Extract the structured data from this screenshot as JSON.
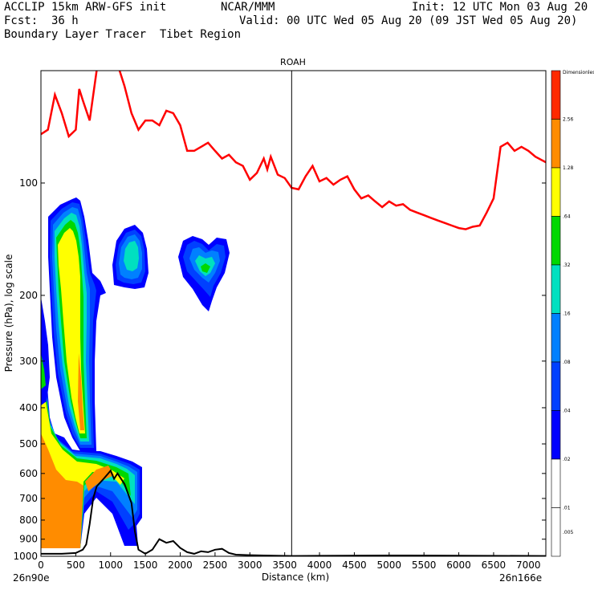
{
  "header": {
    "model": "ACCLIP 15km ARW-GFS init",
    "org": "NCAR/MMM",
    "init": "Init: 12 UTC Mon 03 Aug 20",
    "fcst_label": "Fcst:",
    "fcst_value": "36 h",
    "valid": "Valid: 00 UTC Wed 05 Aug 20 (09 JST Wed 05 Aug 20)",
    "product": "Boundary Layer Tracer  Tibet Region"
  },
  "chart_data": {
    "type": "contour",
    "title": "ROAH",
    "xlabel": "Distance (km)",
    "ylabel": "Pressure (hPa), log scale",
    "xlim": [
      0,
      7250
    ],
    "ylim": [
      1000,
      50
    ],
    "y_scale": "log",
    "x_ticks": [
      0,
      500,
      1000,
      1500,
      2000,
      2500,
      3000,
      3500,
      4000,
      4500,
      5000,
      5500,
      6000,
      6500,
      7000
    ],
    "y_ticks": [
      100,
      200,
      300,
      400,
      500,
      600,
      700,
      800,
      900,
      1000
    ],
    "endpoint_left": "26n90e",
    "endpoint_right": "26n166e",
    "vertical_marker_x": 3600,
    "colorbar": {
      "title": "Dimensionless",
      "levels": [
        "2.56",
        "1.28",
        ".64",
        ".32",
        ".16",
        ".08",
        ".04",
        ".02",
        ".01",
        ".005"
      ],
      "colors": [
        "#ff2a00",
        "#ff8c00",
        "#ffff00",
        "#00d800",
        "#00e0c0",
        "#0080ff",
        "#0040ff",
        "#0000ff",
        "#ffffff",
        "#ffffff"
      ]
    },
    "tropopause_line": {
      "color": "#ff0000",
      "x": [
        0,
        100,
        200,
        300,
        400,
        500,
        550,
        600,
        700,
        800,
        850,
        950,
        1100,
        1200,
        1300,
        1400,
        1500,
        1600,
        1700,
        1800,
        1900,
        2000,
        2100,
        2200,
        2300,
        2400,
        2500,
        2600,
        2700,
        2800,
        2900,
        3000,
        3100,
        3200,
        3250,
        3300,
        3400,
        3500,
        3600,
        3700,
        3800,
        3900,
        4000,
        4100,
        4200,
        4300,
        4400,
        4500,
        4600,
        4700,
        4800,
        4900,
        5000,
        5100,
        5200,
        5300,
        5400,
        5500,
        5600,
        5700,
        5800,
        5900,
        6000,
        6100,
        6200,
        6300,
        6400,
        6500,
        6600,
        6700,
        6800,
        6900,
        7000,
        7100,
        7250
      ],
      "y": [
        74,
        72,
        58,
        65,
        75,
        72,
        56,
        60,
        68,
        50,
        48,
        48,
        48,
        55,
        65,
        72,
        68,
        68,
        70,
        64,
        65,
        70,
        82,
        82,
        80,
        78,
        82,
        86,
        84,
        88,
        90,
        98,
        94,
        86,
        92,
        85,
        95,
        97,
        103,
        104,
        96,
        90,
        99,
        97,
        101,
        98,
        96,
        104,
        110,
        108,
        112,
        116,
        112,
        115,
        114,
        118,
        120,
        122,
        124,
        126,
        128,
        130,
        132,
        133,
        131,
        130,
        120,
        110,
        80,
        78,
        82,
        80,
        82,
        85,
        88
      ]
    },
    "terrain_line": {
      "color": "#000000",
      "x": [
        0,
        100,
        300,
        500,
        600,
        650,
        700,
        750,
        800,
        900,
        1000,
        1050,
        1100,
        1200,
        1300,
        1350,
        1400,
        1500,
        1600,
        1700,
        1800,
        1900,
        2000,
        2100,
        2200,
        2300,
        2400,
        2500,
        2600,
        2700,
        2800,
        3000,
        3200,
        3600,
        4000,
        5000,
        6000,
        7250
      ],
      "y": [
        985,
        985,
        985,
        980,
        960,
        930,
        820,
        700,
        650,
        620,
        590,
        620,
        600,
        640,
        720,
        860,
        960,
        985,
        960,
        900,
        920,
        910,
        950,
        975,
        985,
        970,
        975,
        960,
        955,
        980,
        990,
        993,
        995,
        998,
        997,
        995,
        996,
        998
      ]
    }
  }
}
